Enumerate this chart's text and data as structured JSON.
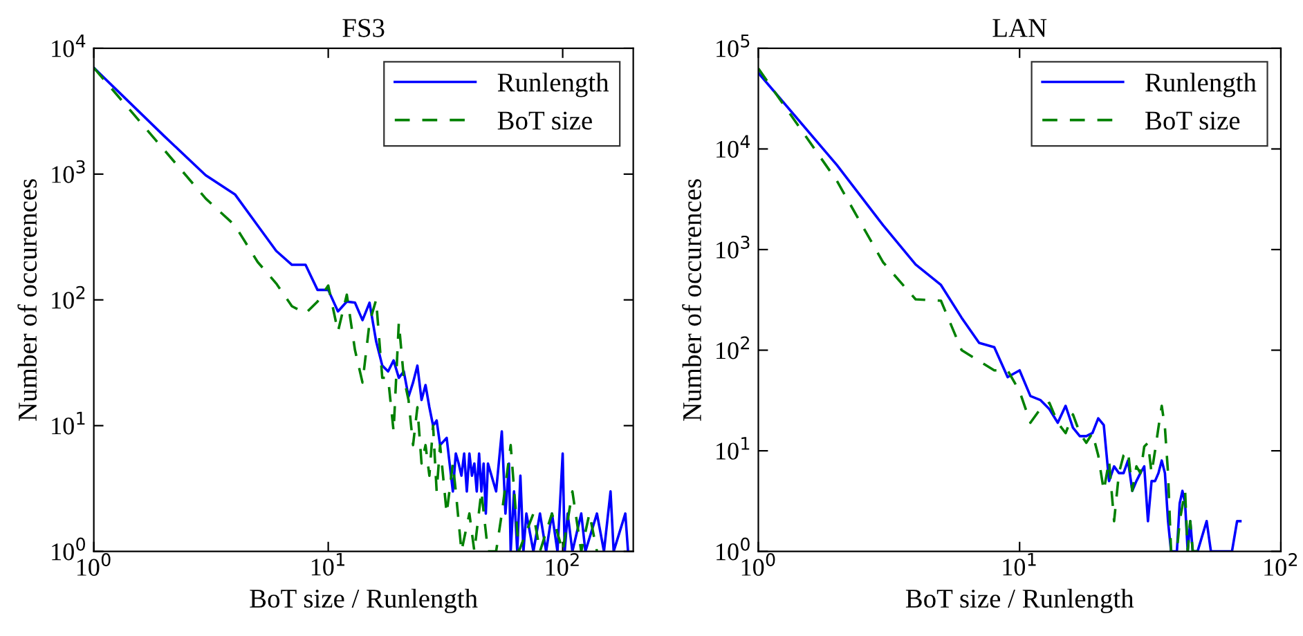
{
  "chart_data": [
    {
      "type": "line",
      "title": "FS3",
      "xlabel": "BoT size / Runlength",
      "ylabel": "Number of occurences",
      "log": "xy",
      "legend": "top right",
      "grid": false,
      "xlim": [
        1,
        200
      ],
      "xticks": [
        {
          "value": 1,
          "label": "10$^{0}$"
        },
        {
          "value": 10,
          "label": "10$^{1}$"
        },
        {
          "value": 100,
          "label": "10$^{2}$"
        }
      ],
      "ylim": [
        1,
        10000
      ],
      "yticks": [
        {
          "value": 1,
          "label": "10$^{0}$"
        },
        {
          "value": 10,
          "label": "10$^{1}$"
        },
        {
          "value": 100,
          "label": "10$^{2}$"
        },
        {
          "value": 1000,
          "label": "10$^{3}$"
        },
        {
          "value": 10000,
          "label": "10$^{4}$"
        }
      ],
      "series": [
        {
          "name": "Runlength",
          "color": "#0000ff",
          "line_style": "solid",
          "x": [
            1,
            2,
            3,
            4,
            5,
            6,
            7,
            8,
            9,
            10,
            11,
            12,
            13,
            14,
            15,
            16,
            17,
            18,
            19,
            20,
            21,
            22,
            23,
            24,
            25,
            26,
            27,
            28,
            29,
            30,
            32,
            34,
            35,
            36,
            37,
            38,
            39,
            40,
            41,
            42,
            43,
            44,
            45,
            46,
            47,
            48,
            52,
            55,
            57,
            59,
            60,
            62,
            64,
            66,
            68,
            70,
            75,
            80,
            85,
            90,
            95,
            100,
            102,
            105,
            110,
            120,
            125,
            140,
            150,
            160,
            165,
            185,
            190
          ],
          "values": [
            7000,
            2000,
            980,
            690,
            390,
            245,
            190,
            190,
            120,
            120,
            81,
            97,
            95,
            69,
            95,
            47,
            30,
            27,
            33,
            24,
            27,
            17,
            22,
            30,
            16,
            21,
            14,
            10,
            11,
            7,
            8,
            3,
            6,
            5,
            4,
            6,
            3,
            6,
            4,
            5,
            3,
            6,
            3,
            5,
            2,
            5,
            3,
            9,
            2,
            5,
            1,
            3,
            1,
            4,
            1,
            2,
            1,
            2,
            1,
            2,
            1,
            6,
            1,
            2,
            1,
            2,
            1,
            2,
            1,
            3,
            1,
            2,
            1
          ]
        },
        {
          "name": "BoT size",
          "color": "#008000",
          "line_style": "dashed",
          "x": [
            1,
            2,
            3,
            4,
            5,
            6,
            7,
            8,
            9,
            10,
            11,
            12,
            13,
            14,
            15,
            16,
            17,
            18,
            19,
            20,
            21,
            22,
            23,
            24,
            25,
            26,
            27,
            28,
            29,
            30,
            32,
            34,
            35,
            37,
            40,
            42,
            45,
            48,
            52,
            55,
            60,
            65,
            75,
            80,
            90,
            100,
            110,
            120,
            130,
            140
          ],
          "values": [
            7000,
            1550,
            640,
            390,
            200,
            135,
            89,
            78,
            97,
            130,
            56,
            110,
            40,
            22,
            66,
            100,
            24,
            24,
            9,
            66,
            24,
            16,
            7,
            14,
            5,
            7,
            4,
            10,
            3,
            7,
            2,
            5,
            3,
            1,
            2,
            1,
            3,
            1,
            1,
            2,
            7,
            1,
            2,
            1,
            2,
            1,
            3,
            1,
            2,
            1
          ]
        }
      ]
    },
    {
      "type": "line",
      "title": "LAN",
      "xlabel": "BoT size / Runlength",
      "ylabel": "Number of occurences",
      "log": "xy",
      "legend": "top right",
      "grid": false,
      "xlim": [
        1,
        100
      ],
      "xticks": [
        {
          "value": 1,
          "label": "10$^{0}$"
        },
        {
          "value": 10,
          "label": "10$^{1}$"
        },
        {
          "value": 100,
          "label": "10$^{2}$"
        }
      ],
      "ylim": [
        1,
        100000
      ],
      "yticks": [
        {
          "value": 1,
          "label": "10$^{0}$"
        },
        {
          "value": 10,
          "label": "10$^{1}$"
        },
        {
          "value": 100,
          "label": "10$^{2}$"
        },
        {
          "value": 1000,
          "label": "10$^{3}$"
        },
        {
          "value": 10000,
          "label": "10$^{4}$"
        },
        {
          "value": 100000,
          "label": "10$^{5}$"
        }
      ],
      "series": [
        {
          "name": "Runlength",
          "color": "#0000ff",
          "line_style": "solid",
          "x": [
            1,
            2,
            3,
            4,
            5,
            6,
            7,
            8,
            9,
            10,
            11,
            12,
            13,
            14,
            15,
            16,
            17,
            18,
            19,
            20,
            21,
            22,
            23,
            24,
            25,
            26,
            27,
            28,
            29,
            30,
            31,
            32,
            33,
            34,
            35,
            36,
            37,
            38,
            39,
            40,
            41,
            42,
            43,
            44,
            45,
            46,
            48,
            52,
            54,
            65,
            68,
            70
          ],
          "values": [
            57000,
            6900,
            1750,
            710,
            445,
            210,
            118,
            107,
            54,
            63,
            35,
            32,
            26,
            19,
            28,
            17,
            14,
            14,
            15,
            21,
            18,
            5,
            7,
            6,
            6,
            8,
            4,
            5,
            6,
            7,
            2,
            5,
            5,
            6,
            8,
            6,
            2,
            1,
            1,
            1,
            3,
            4,
            3,
            1,
            2,
            1,
            1,
            2,
            1,
            1,
            2,
            2
          ]
        },
        {
          "name": "BoT size",
          "color": "#008000",
          "line_style": "dashed",
          "x": [
            1,
            2,
            3,
            4,
            5,
            6,
            7,
            8,
            9,
            10,
            11,
            12,
            13,
            14,
            15,
            16,
            17,
            18,
            19,
            20,
            21,
            22,
            23,
            24,
            25,
            26,
            27,
            28,
            29,
            30,
            31,
            32,
            33,
            34,
            35,
            36,
            37,
            38,
            40,
            41,
            43,
            44,
            45,
            46,
            48,
            50
          ],
          "values": [
            63000,
            4800,
            750,
            320,
            310,
            100,
            78,
            63,
            63,
            39,
            19,
            26,
            30,
            19,
            15,
            23,
            15,
            12,
            15,
            9,
            4,
            8,
            2,
            6,
            9,
            10,
            4,
            7,
            6,
            11,
            12,
            6,
            10,
            17,
            28,
            17,
            6,
            1,
            1,
            2,
            4,
            1,
            2,
            1,
            1,
            1
          ]
        }
      ]
    }
  ]
}
